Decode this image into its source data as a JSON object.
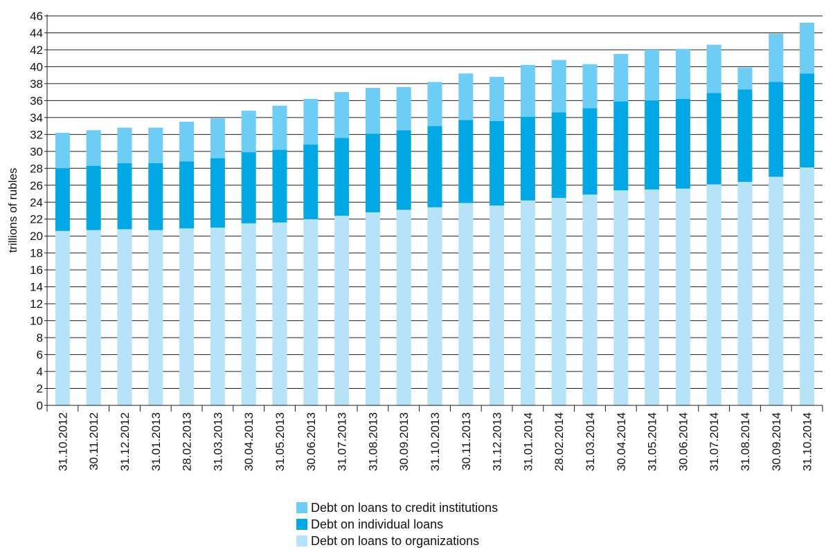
{
  "chart_data": {
    "type": "bar",
    "stacked": true,
    "ylabel": "trillions of rubles",
    "xlabel": "",
    "ylim": [
      0,
      46
    ],
    "ytick_step": 2,
    "grid": "horizontal",
    "legend_position": "bottom",
    "categories": [
      "31.10.2012",
      "30.11.2012",
      "31.12.2012",
      "31.01.2013",
      "28.02.2013",
      "31.03.2013",
      "30.04.2013",
      "31.05.2013",
      "30.06.2013",
      "31.07.2013",
      "31.08.2013",
      "30.09.2013",
      "31.10.2013",
      "30.11.2013",
      "31.12.2013",
      "31.01.2014",
      "28.02.2014",
      "31.03.2014",
      "30.04.2014",
      "31.05.2014",
      "30.06.2014",
      "31.07.2014",
      "31.08.2014",
      "30.09.2014",
      "31.10.2014"
    ],
    "series": [
      {
        "name": "Debt on  loans to organizations",
        "color": "#b6e3f7",
        "values": [
          20.6,
          20.7,
          20.8,
          20.7,
          20.9,
          21.0,
          21.5,
          21.6,
          22.0,
          22.4,
          22.8,
          23.1,
          23.4,
          23.9,
          23.6,
          24.2,
          24.5,
          24.9,
          25.4,
          25.5,
          25.6,
          26.1,
          26.4,
          27.0,
          28.1
        ]
      },
      {
        "name": "Debt on individual loans",
        "color": "#00a8e6",
        "values": [
          7.4,
          7.6,
          7.8,
          7.9,
          7.9,
          8.2,
          8.4,
          8.6,
          8.8,
          9.2,
          9.3,
          9.4,
          9.6,
          9.8,
          10.0,
          9.9,
          10.1,
          10.2,
          10.5,
          10.5,
          10.6,
          10.8,
          10.9,
          11.2,
          11.1
        ]
      },
      {
        "name": "Debt on loans to credit institutions",
        "color": "#6dcdf5",
        "values": [
          4.2,
          4.2,
          4.2,
          4.2,
          4.7,
          4.7,
          4.9,
          5.2,
          5.4,
          5.4,
          5.4,
          5.1,
          5.2,
          5.5,
          5.2,
          6.1,
          6.2,
          5.2,
          5.6,
          6.0,
          5.9,
          5.7,
          2.6,
          5.7,
          6.0
        ]
      }
    ]
  }
}
